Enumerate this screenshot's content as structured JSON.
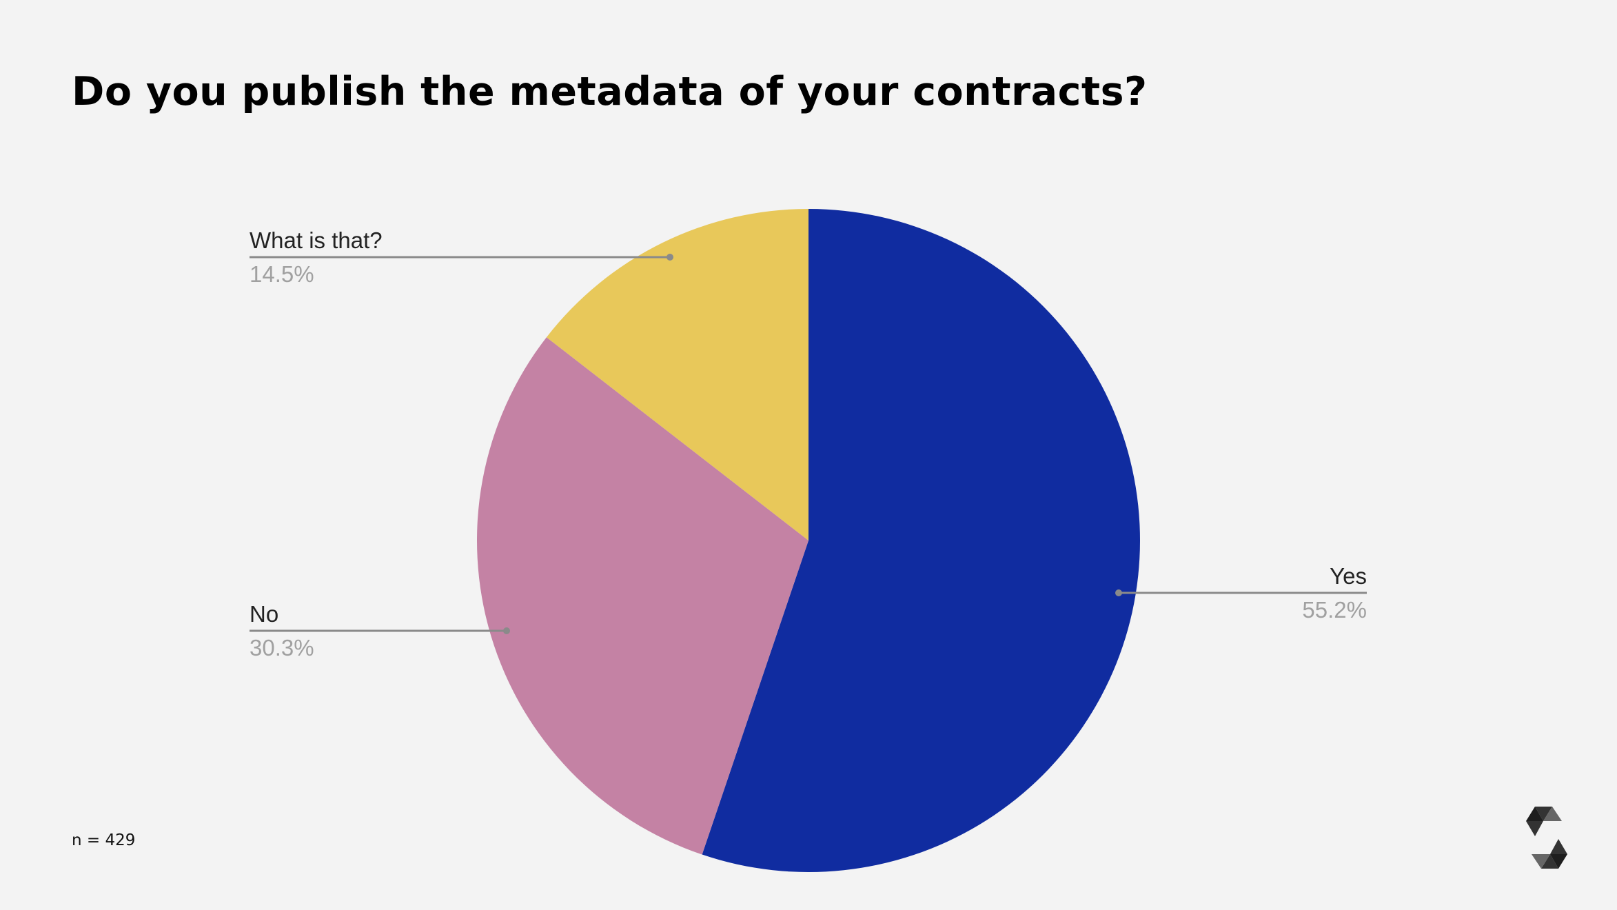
{
  "chart_data": {
    "type": "pie",
    "title": "Do you publish the metadata of your contracts?",
    "start_angle": "top, clockwise",
    "slices": [
      {
        "label": "Yes",
        "value": 55.2,
        "display": "55.2%",
        "color": "#102ca0"
      },
      {
        "label": "No",
        "value": 30.3,
        "display": "30.3%",
        "color": "#c482a4"
      },
      {
        "label": "What is that?",
        "value": 14.5,
        "display": "14.5%",
        "color": "#e8c85a"
      }
    ],
    "legend": "none (callout labels)"
  },
  "footnote": "n = 429",
  "logo": "solidity-logo"
}
